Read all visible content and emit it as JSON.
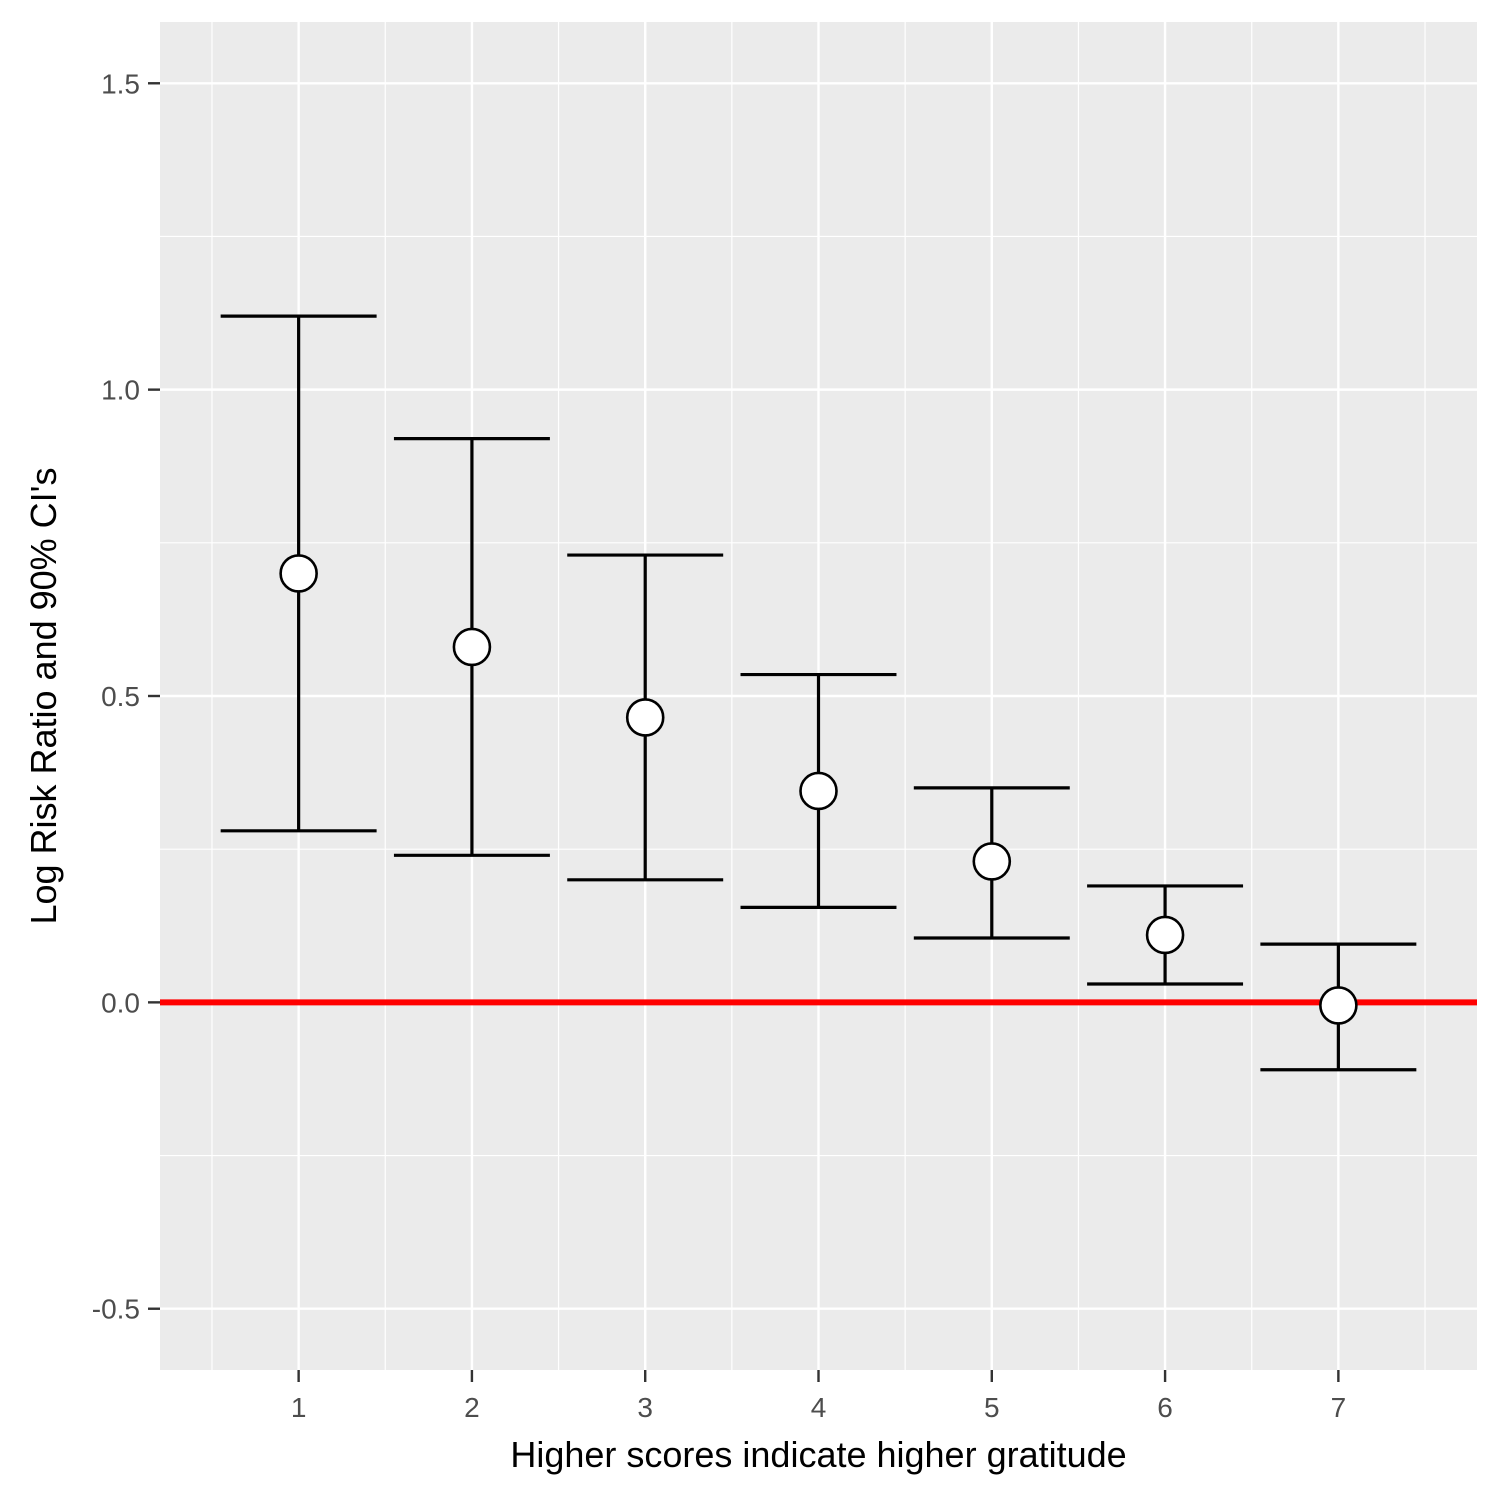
{
  "chart_data": {
    "type": "errorbar",
    "title": "",
    "xlabel": "Higher scores indicate higher gratitude",
    "ylabel": "Log Risk Ratio and 90% CI's",
    "categories": [
      "1",
      "2",
      "3",
      "4",
      "5",
      "6",
      "7"
    ],
    "points": [
      {
        "x": "1",
        "estimate": 0.7,
        "lower": 0.28,
        "upper": 1.12
      },
      {
        "x": "2",
        "estimate": 0.58,
        "lower": 0.24,
        "upper": 0.92
      },
      {
        "x": "3",
        "estimate": 0.465,
        "lower": 0.2,
        "upper": 0.73
      },
      {
        "x": "4",
        "estimate": 0.345,
        "lower": 0.155,
        "upper": 0.535
      },
      {
        "x": "5",
        "estimate": 0.23,
        "lower": 0.105,
        "upper": 0.35
      },
      {
        "x": "6",
        "estimate": 0.11,
        "lower": 0.03,
        "upper": 0.19
      },
      {
        "x": "7",
        "estimate": -0.005,
        "lower": -0.11,
        "upper": 0.095
      }
    ],
    "ylim": [
      -0.6,
      1.6
    ],
    "yticks": [
      -0.5,
      0.0,
      0.5,
      1.0,
      1.5
    ],
    "ytick_labels": [
      "-0.5",
      "0.0",
      "0.5",
      "1.0",
      "1.5"
    ],
    "reference_line": {
      "y": 0.0,
      "color": "#ff0000"
    },
    "grid": true,
    "colors": {
      "panel_background": "#ebebeb",
      "grid": "#ffffff",
      "errorbar": "#000000",
      "point_fill": "#ffffff",
      "point_stroke": "#000000",
      "tick_text": "#4d4d4d",
      "axis_title": "#000000"
    }
  }
}
